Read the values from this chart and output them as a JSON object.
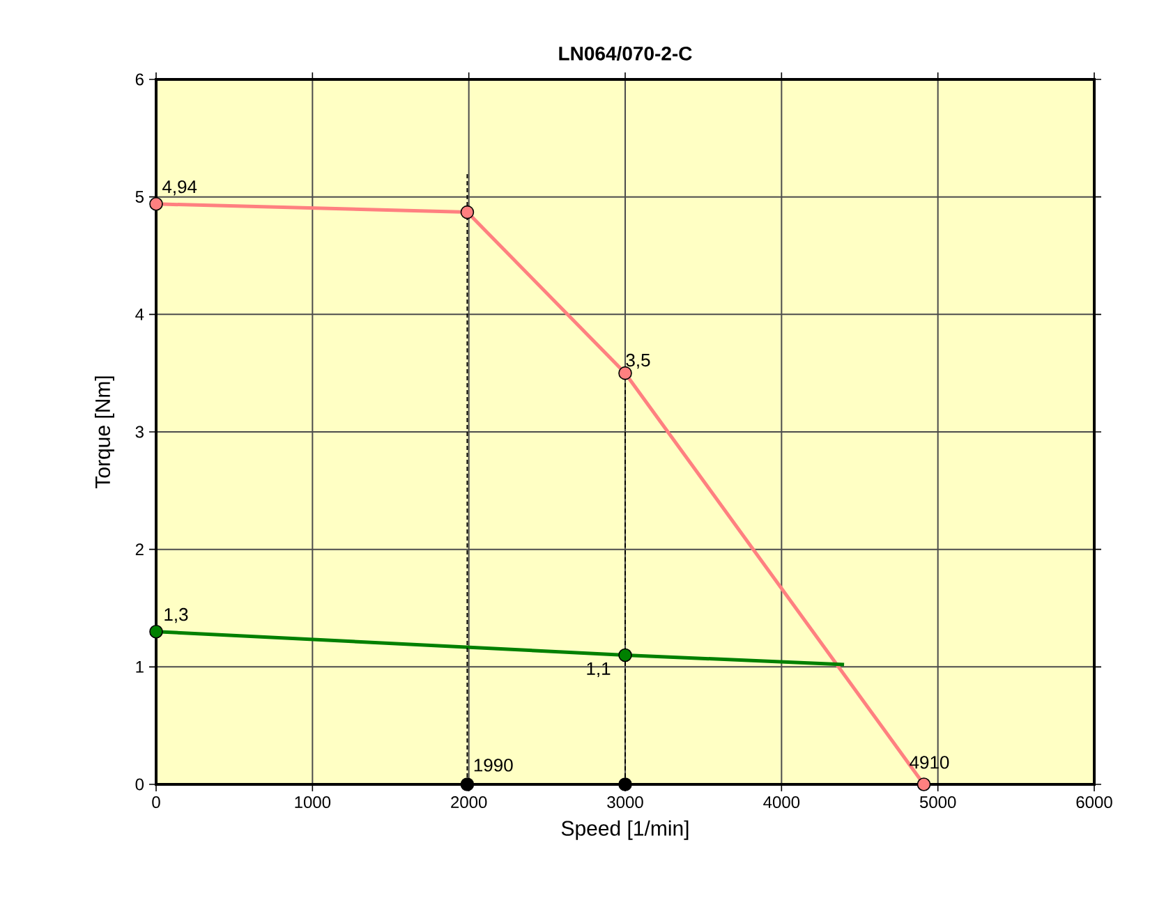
{
  "chart_data": {
    "type": "line",
    "title": "LN064/070-2-C",
    "xlabel": "Speed [1/min]",
    "ylabel": "Torque [Nm]",
    "xlim": [
      0,
      6000
    ],
    "ylim": [
      0,
      6
    ],
    "xticks": [
      0,
      1000,
      2000,
      3000,
      4000,
      5000,
      6000
    ],
    "yticks": [
      0,
      1,
      2,
      3,
      4,
      5,
      6
    ],
    "grid": true,
    "series": [
      {
        "color": "#ff8080",
        "marker": "circle",
        "x": [
          0,
          1990,
          3000,
          4910
        ],
        "values": [
          4.94,
          4.87,
          3.5,
          0
        ]
      },
      {
        "color": "#008000",
        "marker": "none",
        "x": [
          0,
          3000,
          4400
        ],
        "values": [
          1.3,
          1.1,
          1.02
        ]
      },
      {
        "type": "scatter",
        "color": "#008000",
        "marker": "circle",
        "x": [
          0,
          3000
        ],
        "values": [
          1.3,
          1.1
        ]
      },
      {
        "color": "#000000",
        "marker": "none",
        "line_style": "dashed",
        "x": [
          1990,
          1990
        ],
        "values": [
          0,
          5.2
        ]
      },
      {
        "color": "#000000",
        "marker": "none",
        "line_style": "dashed",
        "x": [
          3000,
          3000
        ],
        "values": [
          0,
          3.5
        ]
      },
      {
        "type": "scatter",
        "color": "#000000",
        "marker": "circle",
        "x": [
          1990,
          3000
        ],
        "values": [
          0,
          0
        ]
      }
    ],
    "annotations": [
      {
        "text": "4,94",
        "x": 0,
        "y": 4.94
      },
      {
        "text": "3,5",
        "x": 3000,
        "y": 3.5
      },
      {
        "text": "1,3",
        "x": 0,
        "y": 1.3
      },
      {
        "text": "1,1",
        "x": 3000,
        "y": 1.1
      },
      {
        "text": "1990",
        "x": 1990,
        "y": 0
      },
      {
        "text": "4910",
        "x": 4910,
        "y": 0
      }
    ]
  }
}
